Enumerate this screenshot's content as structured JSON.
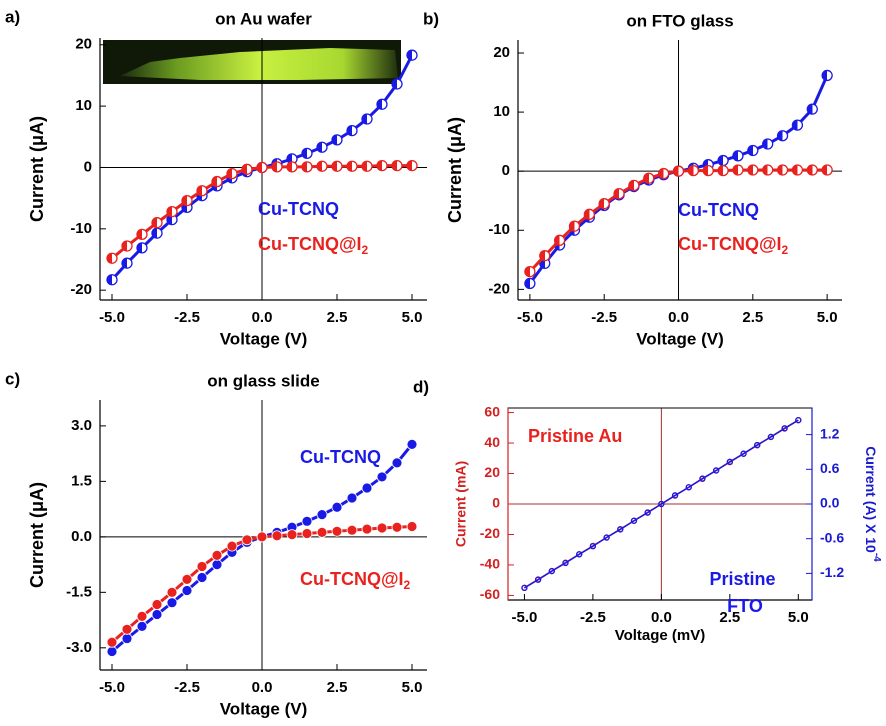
{
  "chart_data": [
    {
      "type": "line",
      "panel_label": "a)",
      "title": "on Au wafer",
      "xlabel": "Voltage (V)",
      "ylabel": "Current (μA)",
      "marker": "half",
      "box": false,
      "x": [
        -5,
        -4.5,
        -4,
        -3.5,
        -3,
        -2.5,
        -2,
        -1.5,
        -1,
        -0.5,
        0,
        0.5,
        1,
        1.5,
        2,
        2.5,
        3,
        3.5,
        4,
        4.5,
        5
      ],
      "series": [
        {
          "name": "Cu-TCNQ",
          "color": "#1a1ae6",
          "values": [
            -18.3,
            -15.6,
            -13.1,
            -10.7,
            -8.5,
            -6.5,
            -4.6,
            -3.0,
            -1.7,
            -0.7,
            0,
            0.6,
            1.4,
            2.3,
            3.3,
            4.5,
            6.0,
            7.9,
            10.3,
            13.6,
            18.3
          ]
        },
        {
          "name": "Cu-TCNQ@I2",
          "color": "#e8221e",
          "values": [
            -14.8,
            -12.8,
            -10.9,
            -9.0,
            -7.2,
            -5.4,
            -3.8,
            -2.3,
            -1.0,
            -0.3,
            0,
            0.1,
            0.1,
            0.1,
            0.2,
            0.2,
            0.2,
            0.2,
            0.3,
            0.3,
            0.3
          ]
        }
      ],
      "xlim": [
        -5.4,
        5.5
      ],
      "xticks": [
        {
          "value": -5,
          "label": "-5.0"
        },
        -2.5,
        {
          "value": 0,
          "label": "0.0"
        },
        2.5,
        {
          "value": 5,
          "label": "5.0"
        }
      ],
      "ylim": [
        -21.6,
        21.1
      ],
      "yticks": [
        -20,
        -10,
        0,
        10,
        20
      ]
    },
    {
      "type": "line",
      "panel_label": "b)",
      "title": "on FTO glass",
      "xlabel": "Voltage (V)",
      "ylabel": "Current (μA)",
      "marker": "half",
      "box": false,
      "x": [
        -5,
        -4.5,
        -4,
        -3.5,
        -3,
        -2.5,
        -2,
        -1.5,
        -1,
        -0.5,
        0,
        0.5,
        1,
        1.5,
        2,
        2.5,
        3,
        3.5,
        4,
        4.5,
        5
      ],
      "series": [
        {
          "name": "Cu-TCNQ",
          "color": "#1a1ae6",
          "values": [
            -19.0,
            -15.6,
            -12.5,
            -10.0,
            -7.8,
            -5.8,
            -4.0,
            -2.6,
            -1.5,
            -0.6,
            0,
            0.5,
            1.1,
            1.8,
            2.6,
            3.5,
            4.6,
            6.0,
            7.8,
            10.5,
            16.2
          ]
        },
        {
          "name": "Cu-TCNQ@I2",
          "color": "#e8221e",
          "values": [
            -17.0,
            -14.3,
            -11.7,
            -9.3,
            -7.3,
            -5.5,
            -3.8,
            -2.4,
            -1.2,
            -0.4,
            0,
            0.1,
            0.1,
            0.1,
            0.2,
            0.2,
            0.2,
            0.2,
            0.2,
            0.2,
            0.2
          ]
        }
      ],
      "xlim": [
        -5.4,
        5.5
      ],
      "xticks": [
        {
          "value": -5,
          "label": "-5.0"
        },
        -2.5,
        {
          "value": 0,
          "label": "0.0"
        },
        2.5,
        {
          "value": 5,
          "label": "5.0"
        }
      ],
      "ylim": [
        -21.8,
        22.2
      ],
      "yticks": [
        -20,
        -10,
        0,
        10,
        20
      ]
    },
    {
      "type": "line",
      "panel_label": "c)",
      "title": "on glass slide",
      "xlabel": "Voltage (V)",
      "ylabel": "Current (μA)",
      "marker": "filled",
      "box": false,
      "x": [
        -5,
        -4.5,
        -4,
        -3.5,
        -3,
        -2.5,
        -2,
        -1.5,
        -1,
        -0.5,
        0,
        0.5,
        1,
        1.5,
        2,
        2.5,
        3,
        3.5,
        4,
        4.5,
        5
      ],
      "series": [
        {
          "name": "Cu-TCNQ",
          "color": "#1a1ae6",
          "values": [
            -3.1,
            -2.75,
            -2.42,
            -2.1,
            -1.78,
            -1.45,
            -1.1,
            -0.75,
            -0.42,
            -0.15,
            0,
            0.12,
            0.26,
            0.42,
            0.6,
            0.8,
            1.05,
            1.32,
            1.62,
            2.0,
            2.5
          ]
        },
        {
          "name": "Cu-TCNQ@I2",
          "color": "#e8221e",
          "values": [
            -2.85,
            -2.5,
            -2.15,
            -1.83,
            -1.5,
            -1.15,
            -0.8,
            -0.5,
            -0.25,
            -0.08,
            0,
            0.03,
            0.06,
            0.09,
            0.12,
            0.15,
            0.18,
            0.21,
            0.24,
            0.26,
            0.28
          ]
        }
      ],
      "xlim": [
        -5.4,
        5.5
      ],
      "xticks": [
        {
          "value": -5,
          "label": "-5.0"
        },
        -2.5,
        {
          "value": 0,
          "label": "0.0"
        },
        2.5,
        {
          "value": 5,
          "label": "5.0"
        }
      ],
      "ylim": [
        -3.6,
        3.7
      ],
      "yticks": [
        {
          "value": 3,
          "label": "3.0"
        },
        1.5,
        {
          "value": 0,
          "label": "0.0"
        },
        -1.5,
        {
          "value": -3,
          "label": "-3.0"
        }
      ]
    },
    {
      "type": "line",
      "panel_label": "d)",
      "xlabel": "Voltage (mV)",
      "ylabel": "Current (mA)",
      "y2label": "Current (A) X 10",
      "y2label_exponent": "-4",
      "marker": "open",
      "box": true,
      "yaxis_color": "#d42020",
      "y2axis_color": "#1a1ad0",
      "zero_line_color": "#a03030",
      "x": [
        -5,
        -4.5,
        -4,
        -3.5,
        -3,
        -2.5,
        -2,
        -1.5,
        -1,
        -0.5,
        0,
        0.5,
        1,
        1.5,
        2,
        2.5,
        3,
        3.5,
        4,
        4.5,
        5
      ],
      "series": [
        {
          "name": "Pristine Au",
          "color": "#e8221e",
          "values": [
            -55,
            -49.5,
            -44,
            -38.5,
            -33,
            -27.5,
            -22,
            -16.5,
            -11,
            -5.5,
            0,
            5.5,
            11,
            16.5,
            22,
            27.5,
            33,
            38.5,
            44,
            49.5,
            55
          ]
        },
        {
          "name": "Pristine FTO",
          "color": "#1a1ae6",
          "axis": "y2",
          "values": [
            -1.45,
            -1.31,
            -1.16,
            -1.02,
            -0.87,
            -0.73,
            -0.58,
            -0.44,
            -0.29,
            -0.15,
            0,
            0.15,
            0.29,
            0.44,
            0.58,
            0.73,
            0.87,
            1.02,
            1.16,
            1.31,
            1.45
          ]
        }
      ],
      "xlim": [
        -5.6,
        5.5
      ],
      "xticks": [
        {
          "value": -5,
          "label": "-5.0"
        },
        -2.5,
        {
          "value": 0,
          "label": "0.0"
        },
        2.5,
        {
          "value": 5,
          "label": "5.0"
        }
      ],
      "ylim": [
        -63,
        63
      ],
      "yticks": [
        60,
        40,
        20,
        0,
        -20,
        -40,
        -60
      ],
      "y2lim": [
        -1.66,
        1.66
      ],
      "y2ticks": [
        1.2,
        0.6,
        {
          "value": 0,
          "label": "0.0"
        },
        -0.6,
        -1.2
      ]
    }
  ]
}
